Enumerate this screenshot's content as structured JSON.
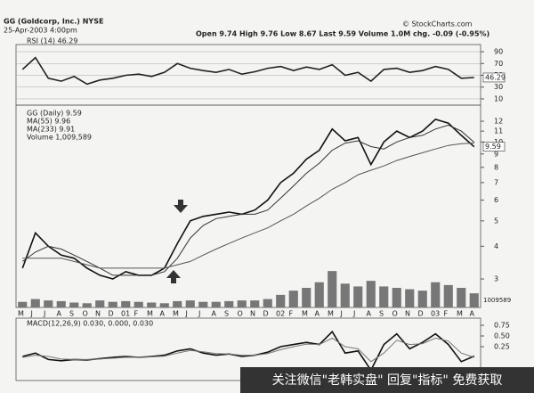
{
  "header": {
    "symbol": "GG (Goldcorp, Inc.) NYSE",
    "date": "25-Apr-2003 4:00pm",
    "source": "© StockCharts.com",
    "quote": "Open 9.74 High 9.76 Low 8.67 Last 9.59 Volume 1.0M chg. -0.09 (-0.95%)"
  },
  "watermark": "关注微信\"老韩实盘\" 回复\"指标\" 免费获取",
  "chart_data": [
    {
      "type": "line",
      "ylim": [
        0,
        100
      ],
      "yticks": [
        90,
        70,
        50,
        30,
        10
      ],
      "grid": true,
      "series": [
        {
          "name": "RSI (14) 46.29",
          "color": "#222222",
          "values": [
            60,
            80,
            45,
            40,
            48,
            35,
            42,
            45,
            50,
            52,
            48,
            55,
            70,
            62,
            58,
            55,
            60,
            52,
            56,
            62,
            65,
            58,
            64,
            60,
            68,
            50,
            55,
            40,
            60,
            62,
            55,
            58,
            65,
            60,
            45,
            46.29
          ]
        }
      ]
    },
    {
      "type": "line",
      "log": true,
      "ylim": [
        2.7,
        13.5
      ],
      "yticks": [
        12,
        11,
        10,
        9,
        8,
        7,
        6,
        5,
        4,
        3
      ],
      "categories": [
        "M",
        "J",
        "J",
        "A",
        "S",
        "O",
        "N",
        "D",
        "01",
        "F",
        "M",
        "A",
        "M",
        "J",
        "J",
        "A",
        "S",
        "O",
        "N",
        "D",
        "02",
        "F",
        "M",
        "A",
        "M",
        "J",
        "J",
        "A",
        "S",
        "O",
        "N",
        "D",
        "03",
        "F",
        "M",
        "A"
      ],
      "series": [
        {
          "name": "GG (Daily) 9.59",
          "color": "#111111",
          "values": [
            3.3,
            4.5,
            4.0,
            3.7,
            3.6,
            3.3,
            3.1,
            3.0,
            3.2,
            3.1,
            3.1,
            3.3,
            4.1,
            5.0,
            5.2,
            5.3,
            5.4,
            5.3,
            5.5,
            6.0,
            7.0,
            7.6,
            8.6,
            9.3,
            11.2,
            10.1,
            10.4,
            8.2,
            10.0,
            11.0,
            10.4,
            11.0,
            12.2,
            11.8,
            10.6,
            9.59
          ]
        },
        {
          "name": "MA(55) 9.96",
          "color": "#333333",
          "values": [
            3.5,
            3.8,
            4.0,
            3.9,
            3.7,
            3.5,
            3.3,
            3.1,
            3.1,
            3.1,
            3.1,
            3.2,
            3.6,
            4.3,
            4.8,
            5.1,
            5.2,
            5.3,
            5.3,
            5.5,
            6.1,
            6.8,
            7.6,
            8.3,
            9.3,
            9.9,
            10.1,
            9.6,
            9.4,
            10.0,
            10.4,
            10.6,
            11.2,
            11.6,
            11.0,
            9.96
          ]
        },
        {
          "name": "MA(233) 9.91",
          "color": "#555555",
          "values": [
            3.6,
            3.6,
            3.6,
            3.6,
            3.5,
            3.4,
            3.3,
            3.3,
            3.3,
            3.3,
            3.3,
            3.3,
            3.4,
            3.5,
            3.7,
            3.9,
            4.1,
            4.3,
            4.5,
            4.7,
            5.0,
            5.3,
            5.7,
            6.1,
            6.6,
            7.0,
            7.5,
            7.8,
            8.1,
            8.5,
            8.8,
            9.1,
            9.4,
            9.7,
            9.85,
            9.91
          ]
        }
      ],
      "volume": {
        "name": "Volume 1,009,589",
        "color": "#777777",
        "vlim": [
          0,
          3500000
        ],
        "values": [
          400000,
          600000,
          500000,
          450000,
          350000,
          300000,
          500000,
          400000,
          450000,
          400000,
          350000,
          300000,
          450000,
          500000,
          400000,
          400000,
          450000,
          500000,
          500000,
          600000,
          900000,
          1200000,
          1400000,
          1800000,
          2600000,
          1700000,
          1500000,
          1900000,
          1500000,
          1400000,
          1300000,
          1200000,
          1800000,
          1600000,
          1400000,
          1009589
        ]
      }
    },
    {
      "type": "line",
      "title": "MACD(12,26,9) 0.030, 0.000, 0.030",
      "ylim": [
        -0.5,
        0.85
      ],
      "yticks": [
        0.75,
        {
          "value": 0.5,
          "label": "0.50"
        },
        0.25
      ],
      "series": [
        {
          "color": "#111111",
          "values": [
            0.02,
            0.1,
            -0.05,
            -0.08,
            -0.05,
            -0.06,
            -0.03,
            0,
            0.02,
            0,
            0.02,
            0.05,
            0.15,
            0.2,
            0.1,
            0.05,
            0.08,
            0.02,
            0.05,
            0.12,
            0.25,
            0.3,
            0.35,
            0.3,
            0.6,
            0.1,
            0.15,
            -0.3,
            0.3,
            0.55,
            0.2,
            0.35,
            0.55,
            0.3,
            -0.1,
            0.03
          ]
        },
        {
          "color": "#777777",
          "values": [
            0,
            0.05,
            0.02,
            -0.04,
            -0.05,
            -0.05,
            -0.04,
            -0.02,
            0,
            0,
            0.01,
            0.03,
            0.1,
            0.16,
            0.13,
            0.09,
            0.08,
            0.05,
            0.05,
            0.09,
            0.18,
            0.25,
            0.31,
            0.3,
            0.45,
            0.25,
            0.2,
            -0.1,
            0.1,
            0.4,
            0.3,
            0.32,
            0.45,
            0.38,
            0.1,
            0
          ]
        }
      ]
    }
  ]
}
